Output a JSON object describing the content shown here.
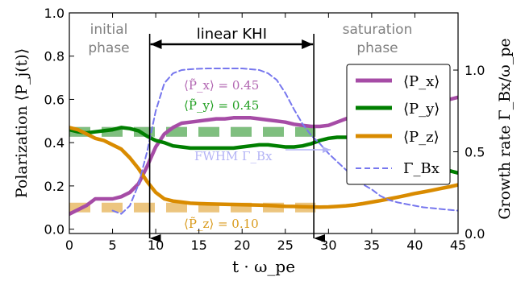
{
  "chart_data": {
    "type": "line",
    "x_label": "t · ω_pe",
    "y_label_left": "Polarization ⟨P_j(t)⟩",
    "y_label_right": "Growth rate Γ_Bx/ω_pe",
    "xlim": [
      0,
      45
    ],
    "ylim_left": [
      -0.02,
      1.0
    ],
    "ylim_right": [
      0.0,
      1.35
    ],
    "x_ticks": [
      "0",
      "5",
      "10",
      "15",
      "20",
      "25",
      "30",
      "35",
      "40",
      "45"
    ],
    "y_ticks_left": [
      "0.0",
      "0.2",
      "0.4",
      "0.6",
      "0.8",
      "1.0"
    ],
    "y_ticks_right": [
      "0.0",
      "0.5",
      "1.0"
    ],
    "grid": false,
    "legend_position": "right",
    "colors": {
      "Px": "#a64ca6",
      "Py": "#007f00",
      "Pz": "#d98b00",
      "Gamma": "#7777ee",
      "Px_band": "#d6a6d6",
      "Py_band": "#7fbf7f",
      "Pz_band": "#ecc57f"
    },
    "series": [
      {
        "key": "Px",
        "name": "⟨P_x⟩",
        "axis": "left",
        "style": "solid",
        "points": [
          [
            0,
            0.07
          ],
          [
            1,
            0.09
          ],
          [
            2,
            0.11
          ],
          [
            3,
            0.14
          ],
          [
            4,
            0.14
          ],
          [
            5,
            0.14
          ],
          [
            6,
            0.15
          ],
          [
            7,
            0.17
          ],
          [
            8,
            0.21
          ],
          [
            9,
            0.29
          ],
          [
            10,
            0.38
          ],
          [
            11,
            0.44
          ],
          [
            12,
            0.47
          ],
          [
            13,
            0.49
          ],
          [
            14,
            0.495
          ],
          [
            15,
            0.5
          ],
          [
            16,
            0.505
          ],
          [
            17,
            0.51
          ],
          [
            18,
            0.51
          ],
          [
            19,
            0.515
          ],
          [
            20,
            0.515
          ],
          [
            21,
            0.515
          ],
          [
            22,
            0.51
          ],
          [
            23,
            0.505
          ],
          [
            24,
            0.5
          ],
          [
            25,
            0.495
          ],
          [
            26,
            0.485
          ],
          [
            27,
            0.48
          ],
          [
            28,
            0.475
          ],
          [
            29,
            0.475
          ],
          [
            30,
            0.48
          ],
          [
            31,
            0.495
          ],
          [
            32,
            0.51
          ],
          [
            33,
            0.52
          ],
          [
            34,
            0.53
          ],
          [
            35,
            0.54
          ],
          [
            36,
            0.55
          ],
          [
            37,
            0.56
          ],
          [
            38,
            0.565
          ],
          [
            39,
            0.57
          ],
          [
            40,
            0.58
          ],
          [
            41,
            0.585
          ],
          [
            42,
            0.59
          ],
          [
            43,
            0.595
          ],
          [
            44,
            0.6
          ],
          [
            45,
            0.61
          ]
        ]
      },
      {
        "key": "Py",
        "name": "⟨P_y⟩",
        "axis": "left",
        "style": "solid",
        "points": [
          [
            0,
            0.46
          ],
          [
            1,
            0.45
          ],
          [
            2,
            0.445
          ],
          [
            3,
            0.45
          ],
          [
            4,
            0.455
          ],
          [
            5,
            0.46
          ],
          [
            6,
            0.47
          ],
          [
            7,
            0.465
          ],
          [
            8,
            0.455
          ],
          [
            9,
            0.43
          ],
          [
            10,
            0.41
          ],
          [
            11,
            0.4
          ],
          [
            12,
            0.385
          ],
          [
            13,
            0.38
          ],
          [
            14,
            0.375
          ],
          [
            15,
            0.375
          ],
          [
            16,
            0.375
          ],
          [
            17,
            0.375
          ],
          [
            18,
            0.375
          ],
          [
            19,
            0.375
          ],
          [
            20,
            0.38
          ],
          [
            21,
            0.385
          ],
          [
            22,
            0.39
          ],
          [
            23,
            0.39
          ],
          [
            24,
            0.385
          ],
          [
            25,
            0.38
          ],
          [
            26,
            0.38
          ],
          [
            27,
            0.385
          ],
          [
            28,
            0.395
          ],
          [
            29,
            0.41
          ],
          [
            30,
            0.42
          ],
          [
            31,
            0.425
          ],
          [
            32,
            0.425
          ],
          [
            33,
            0.42
          ],
          [
            34,
            0.415
          ],
          [
            35,
            0.4
          ],
          [
            36,
            0.385
          ],
          [
            37,
            0.37
          ],
          [
            38,
            0.355
          ],
          [
            39,
            0.34
          ],
          [
            40,
            0.32
          ],
          [
            41,
            0.305
          ],
          [
            42,
            0.29
          ],
          [
            43,
            0.28
          ],
          [
            44,
            0.27
          ],
          [
            45,
            0.26
          ]
        ]
      },
      {
        "key": "Pz",
        "name": "⟨P_z⟩",
        "axis": "left",
        "style": "solid",
        "points": [
          [
            0,
            0.47
          ],
          [
            1,
            0.46
          ],
          [
            2,
            0.44
          ],
          [
            3,
            0.42
          ],
          [
            4,
            0.41
          ],
          [
            5,
            0.39
          ],
          [
            6,
            0.37
          ],
          [
            7,
            0.33
          ],
          [
            8,
            0.28
          ],
          [
            9,
            0.22
          ],
          [
            10,
            0.17
          ],
          [
            11,
            0.14
          ],
          [
            12,
            0.13
          ],
          [
            13,
            0.125
          ],
          [
            14,
            0.12
          ],
          [
            15,
            0.118
          ],
          [
            16,
            0.117
          ],
          [
            17,
            0.116
          ],
          [
            18,
            0.115
          ],
          [
            19,
            0.114
          ],
          [
            20,
            0.113
          ],
          [
            21,
            0.112
          ],
          [
            22,
            0.111
          ],
          [
            23,
            0.11
          ],
          [
            24,
            0.108
          ],
          [
            25,
            0.106
          ],
          [
            26,
            0.105
          ],
          [
            27,
            0.104
          ],
          [
            28,
            0.103
          ],
          [
            29,
            0.102
          ],
          [
            30,
            0.103
          ],
          [
            31,
            0.105
          ],
          [
            32,
            0.108
          ],
          [
            33,
            0.112
          ],
          [
            34,
            0.118
          ],
          [
            35,
            0.125
          ],
          [
            36,
            0.132
          ],
          [
            37,
            0.14
          ],
          [
            38,
            0.148
          ],
          [
            39,
            0.156
          ],
          [
            40,
            0.165
          ],
          [
            41,
            0.172
          ],
          [
            42,
            0.18
          ],
          [
            43,
            0.188
          ],
          [
            44,
            0.196
          ],
          [
            45,
            0.205
          ]
        ]
      },
      {
        "key": "Gamma",
        "name": "Γ_Bx",
        "axis": "right",
        "style": "dashed",
        "points": [
          [
            5,
            0.14
          ],
          [
            6,
            0.12
          ],
          [
            7,
            0.17
          ],
          [
            8,
            0.3
          ],
          [
            9,
            0.5
          ],
          [
            10,
            0.75
          ],
          [
            11,
            0.92
          ],
          [
            12,
            0.98
          ],
          [
            13,
            1.0
          ],
          [
            14,
            1.005
          ],
          [
            15,
            1.008
          ],
          [
            16,
            1.01
          ],
          [
            17,
            1.01
          ],
          [
            18,
            1.01
          ],
          [
            19,
            1.01
          ],
          [
            20,
            1.01
          ],
          [
            21,
            1.005
          ],
          [
            22,
            1.0
          ],
          [
            23,
            0.98
          ],
          [
            24,
            0.94
          ],
          [
            25,
            0.86
          ],
          [
            26,
            0.76
          ],
          [
            27,
            0.67
          ],
          [
            28,
            0.6
          ],
          [
            29,
            0.55
          ],
          [
            30,
            0.49
          ],
          [
            31,
            0.44
          ],
          [
            32,
            0.39
          ],
          [
            33,
            0.34
          ],
          [
            34,
            0.3
          ],
          [
            35,
            0.27
          ],
          [
            36,
            0.23
          ],
          [
            37,
            0.205
          ],
          [
            38,
            0.19
          ],
          [
            39,
            0.18
          ],
          [
            40,
            0.17
          ],
          [
            41,
            0.16
          ],
          [
            42,
            0.155
          ],
          [
            43,
            0.15
          ],
          [
            44,
            0.145
          ],
          [
            45,
            0.14
          ]
        ]
      }
    ],
    "bands": [
      {
        "key": "Px_band",
        "y": 0.45,
        "x_start": 0,
        "x_end": 28.5
      },
      {
        "key": "Py_band",
        "y": 0.45,
        "x_start": 0,
        "x_end": 28.5
      },
      {
        "key": "Pz_band",
        "y": 0.1,
        "x_start": 0,
        "x_end": 28.5
      }
    ],
    "vlines": [
      9.3,
      28.3
    ],
    "phase_labels": {
      "initial": [
        "initial",
        "phase"
      ],
      "linear": "linear KHI",
      "saturation": [
        "saturation",
        "phase"
      ]
    },
    "annotations": {
      "px_mean": "⟨P̃_x⟩ = 0.45",
      "py_mean": "⟨P̃_y⟩ = 0.45",
      "pz_mean": "⟨P̃_z⟩ = 0.10",
      "fwhm": "FWHM Γ_Bx"
    }
  }
}
